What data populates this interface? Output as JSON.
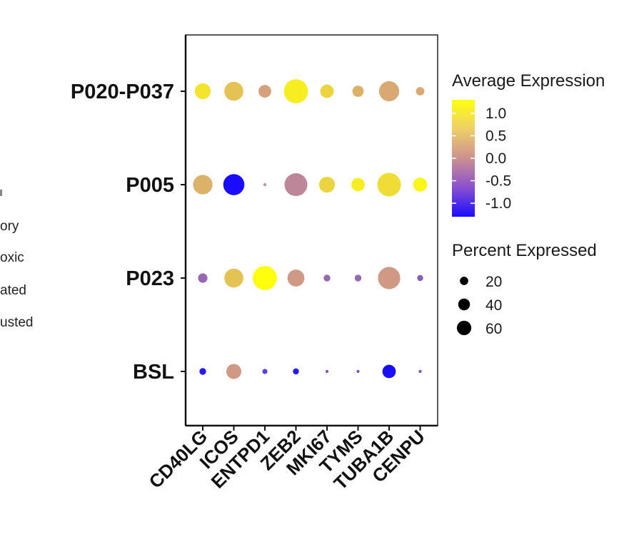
{
  "chart_data": {
    "type": "dot",
    "genes": [
      "CD40LG",
      "ICOS",
      "ENTPD1",
      "ZEB2",
      "MKI67",
      "TYMS",
      "TUBA1B",
      "CENPU"
    ],
    "groups": [
      "P020-P037",
      "P005",
      "P023",
      "BSL"
    ],
    "color_legend": {
      "title": "Average Expression",
      "ticks": [
        1.0,
        0.5,
        0.0,
        -0.5,
        -1.0
      ],
      "tick_labels": [
        "1.0",
        "0.5",
        "0.0",
        "-0.5",
        "-1.0"
      ],
      "range": [
        -1.3,
        1.3
      ],
      "low_color": "#1a0dff",
      "mid_color": "#cc9090",
      "high_color": "#ffff0d"
    },
    "size_legend": {
      "title": "Percent Expressed",
      "values": [
        20,
        40,
        60
      ],
      "labels": [
        "20",
        "40",
        "60"
      ]
    },
    "points": [
      {
        "group": "P020-P037",
        "gene": "CD40LG",
        "avg_exp": 1.0,
        "pct": 28
      },
      {
        "group": "P020-P037",
        "gene": "ICOS",
        "avg_exp": 0.6,
        "pct": 40
      },
      {
        "group": "P020-P037",
        "gene": "ENTPD1",
        "avg_exp": 0.2,
        "pct": 18
      },
      {
        "group": "P020-P037",
        "gene": "ZEB2",
        "avg_exp": 1.1,
        "pct": 65
      },
      {
        "group": "P020-P037",
        "gene": "MKI67",
        "avg_exp": 0.8,
        "pct": 20
      },
      {
        "group": "P020-P037",
        "gene": "TYMS",
        "avg_exp": 0.4,
        "pct": 14
      },
      {
        "group": "P020-P037",
        "gene": "TUBA1B",
        "avg_exp": 0.3,
        "pct": 45
      },
      {
        "group": "P020-P037",
        "gene": "CENPU",
        "avg_exp": 0.3,
        "pct": 8
      },
      {
        "group": "P005",
        "gene": "CD40LG",
        "avg_exp": 0.4,
        "pct": 42
      },
      {
        "group": "P005",
        "gene": "ICOS",
        "avg_exp": -1.3,
        "pct": 50
      },
      {
        "group": "P005",
        "gene": "ENTPD1",
        "avg_exp": 0.0,
        "pct": 1
      },
      {
        "group": "P005",
        "gene": "ZEB2",
        "avg_exp": -0.1,
        "pct": 58
      },
      {
        "group": "P005",
        "gene": "MKI67",
        "avg_exp": 0.8,
        "pct": 28
      },
      {
        "group": "P005",
        "gene": "TYMS",
        "avg_exp": 1.1,
        "pct": 20
      },
      {
        "group": "P005",
        "gene": "TUBA1B",
        "avg_exp": 0.9,
        "pct": 62
      },
      {
        "group": "P005",
        "gene": "CENPU",
        "avg_exp": 1.2,
        "pct": 22
      },
      {
        "group": "P023",
        "gene": "CD40LG",
        "avg_exp": -0.4,
        "pct": 10
      },
      {
        "group": "P023",
        "gene": "ICOS",
        "avg_exp": 0.6,
        "pct": 40
      },
      {
        "group": "P023",
        "gene": "ENTPD1",
        "avg_exp": 1.3,
        "pct": 65
      },
      {
        "group": "P023",
        "gene": "ZEB2",
        "avg_exp": 0.1,
        "pct": 32
      },
      {
        "group": "P023",
        "gene": "MKI67",
        "avg_exp": -0.4,
        "pct": 5
      },
      {
        "group": "P023",
        "gene": "TYMS",
        "avg_exp": -0.4,
        "pct": 5
      },
      {
        "group": "P023",
        "gene": "TUBA1B",
        "avg_exp": 0.1,
        "pct": 55
      },
      {
        "group": "P023",
        "gene": "CENPU",
        "avg_exp": -0.5,
        "pct": 4
      },
      {
        "group": "BSL",
        "gene": "CD40LG",
        "avg_exp": -1.2,
        "pct": 5
      },
      {
        "group": "BSL",
        "gene": "ICOS",
        "avg_exp": 0.1,
        "pct": 25
      },
      {
        "group": "BSL",
        "gene": "ENTPD1",
        "avg_exp": -0.8,
        "pct": 3
      },
      {
        "group": "BSL",
        "gene": "ZEB2",
        "avg_exp": -1.2,
        "pct": 4
      },
      {
        "group": "BSL",
        "gene": "MKI67",
        "avg_exp": -0.6,
        "pct": 1
      },
      {
        "group": "BSL",
        "gene": "TYMS",
        "avg_exp": -0.6,
        "pct": 1
      },
      {
        "group": "BSL",
        "gene": "TUBA1B",
        "avg_exp": -1.3,
        "pct": 20
      },
      {
        "group": "BSL",
        "gene": "CENPU",
        "avg_exp": -0.6,
        "pct": 1
      }
    ]
  },
  "left_legend_fragments": [
    "ory",
    "oxic",
    "ated",
    "usted"
  ]
}
